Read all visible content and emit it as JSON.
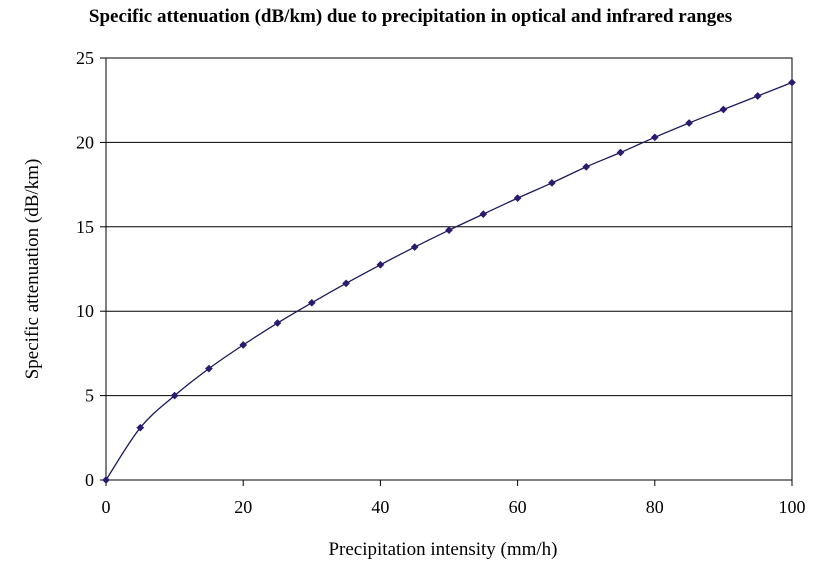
{
  "chart_data": {
    "type": "line",
    "title": "Specific attenuation (dB/km) due to precipitation in optical and infrared ranges",
    "xlabel": "Precipitation intensity (mm/h)",
    "ylabel": "Specific attenuation (dB/km)",
    "xlim": [
      0,
      100
    ],
    "ylim": [
      0,
      25
    ],
    "xticks": [
      "0",
      "20",
      "40",
      "60",
      "80",
      "100"
    ],
    "yticks": [
      "0",
      "5",
      "10",
      "15",
      "20",
      "25"
    ],
    "grid": "horizontal",
    "line_color": "#1a1a5e",
    "marker_color": "#2b1a6e",
    "x": [
      0,
      5,
      10,
      15,
      20,
      25,
      30,
      35,
      40,
      45,
      50,
      55,
      60,
      65,
      70,
      75,
      80,
      85,
      90,
      95,
      100
    ],
    "y": [
      0,
      3.1,
      5.0,
      6.6,
      8.0,
      9.3,
      10.5,
      11.65,
      12.75,
      13.8,
      14.8,
      15.75,
      16.7,
      17.6,
      18.55,
      19.4,
      20.3,
      21.15,
      21.95,
      22.75,
      23.55
    ]
  }
}
